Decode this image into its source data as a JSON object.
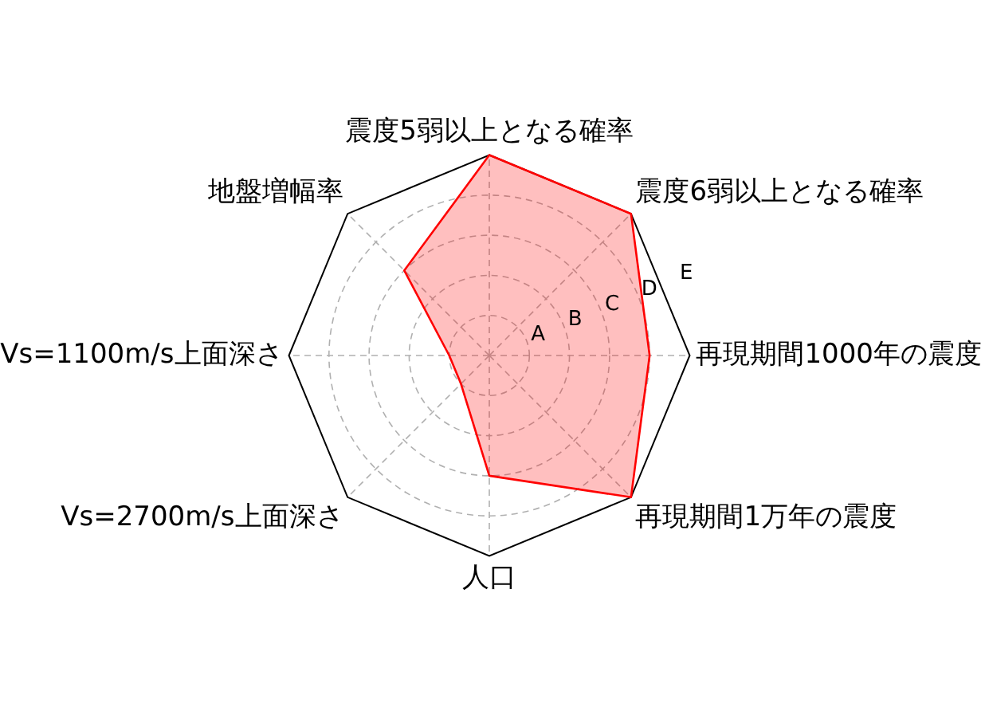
{
  "chart_data": {
    "type": "radar",
    "categories": [
      "震度5弱以上となる確率",
      "震度6弱以上となる確率",
      "再現期間1000年の震度",
      "再現期間1万年の震度",
      "人口",
      "Vs=2700m/s上面深さ",
      "Vs=1100m/s上面深さ",
      "地盤増幅率"
    ],
    "series": [
      {
        "color": "#ff0000",
        "values": [
          5,
          5,
          4,
          5,
          3,
          1,
          1,
          3
        ]
      }
    ],
    "ylim": [
      0,
      5
    ],
    "yticks": [
      {
        "value": 1,
        "label": "A"
      },
      {
        "value": 2,
        "label": "B"
      },
      {
        "value": 3,
        "label": "C"
      },
      {
        "value": 4,
        "label": "D"
      },
      {
        "value": 5,
        "label": "E"
      }
    ],
    "grid": true,
    "legend": false,
    "marker": "none",
    "line_style": "solid"
  }
}
